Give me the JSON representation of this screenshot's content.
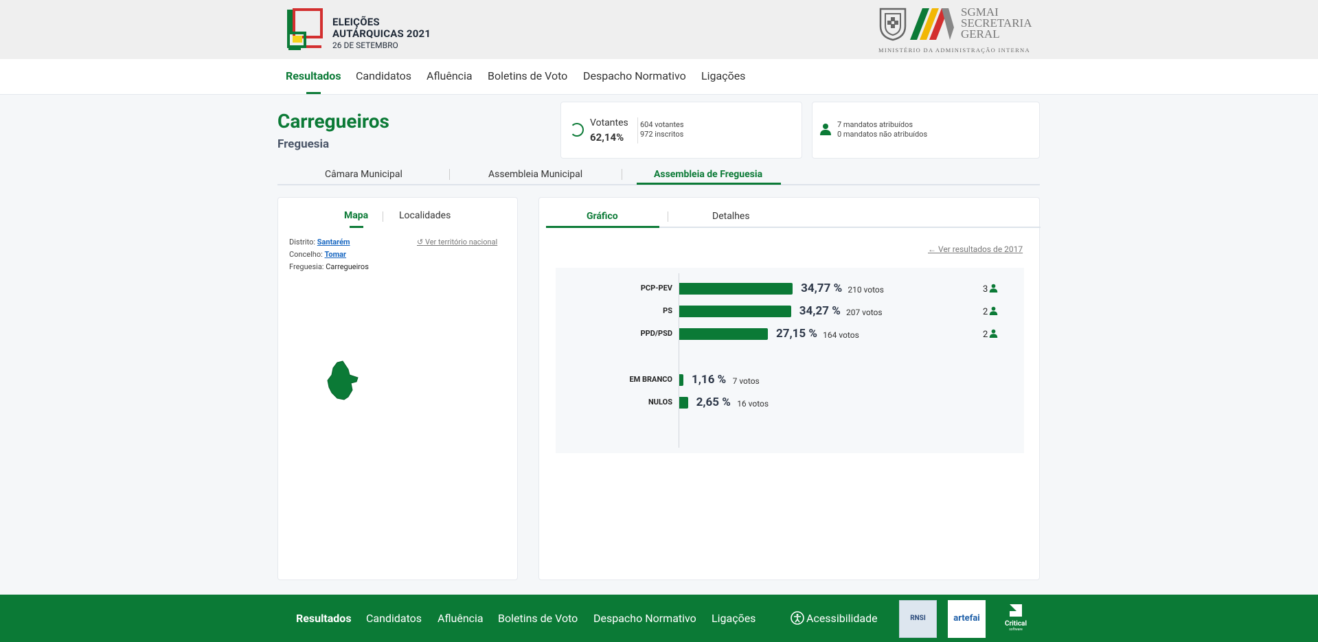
{
  "header": {
    "logo_line1": "ELEIÇÕES",
    "logo_line2": "AUTÁRQUICAS 2021",
    "logo_line3": "26 DE SETEMBRO",
    "sgmai_line1": "SGMAI",
    "sgmai_line2": "SECRETARIA",
    "sgmai_line3": "GERAL",
    "sgmai_sub": "MINISTÉRIO DA ADMINISTRAÇÃO INTERNA"
  },
  "nav": {
    "items": [
      "Resultados",
      "Candidatos",
      "Afluência",
      "Boletins de Voto",
      "Despacho Normativo",
      "Ligações"
    ]
  },
  "place": {
    "name": "Carregueiros",
    "type": "Freguesia"
  },
  "votantes": {
    "label": "Votantes",
    "pct": "62,14%",
    "voters": "604 votantes",
    "registered": "972 inscritos"
  },
  "mandatos": {
    "assigned": "7 mandatos atribuídos",
    "unassigned": "0 mandatos não atribuídos"
  },
  "tabs1": [
    "Câmara Municipal",
    "Assembleia Municipal",
    "Assembleia de Freguesia"
  ],
  "map_panel": {
    "tabs": [
      "Mapa",
      "Localidades"
    ],
    "ver_nacional": "Ver território nacional",
    "distrito_label": "Distrito:",
    "distrito": "Santarém",
    "concelho_label": "Concelho:",
    "concelho": "Tomar",
    "freguesia_label": "Freguesia:",
    "freguesia": "Carregueiros"
  },
  "chart_panel": {
    "tabs": [
      "Gráfico",
      "Detalhes"
    ],
    "ver_2017": "Ver resultados de 2017"
  },
  "chart_data": {
    "type": "bar",
    "orientation": "horizontal",
    "categories": [
      "PCP-PEV",
      "PS",
      "PPD/PSD",
      "EM BRANCO",
      "NULOS"
    ],
    "values": [
      34.77,
      34.27,
      27.15,
      1.16,
      2.65
    ],
    "pct_labels": [
      "34,77 %",
      "34,27 %",
      "27,15 %",
      "1,16 %",
      "2,65 %"
    ],
    "votes_labels": [
      "210 votos",
      "207 votos",
      "164 votos",
      "7 votos",
      "16 votos"
    ],
    "mandates": [
      "3",
      "2",
      "2",
      "",
      ""
    ],
    "bar_color": "#0b7a36"
  },
  "footer": {
    "items": [
      "Resultados",
      "Candidatos",
      "Afluência",
      "Boletins de Voto",
      "Despacho Normativo",
      "Ligações"
    ],
    "accessibility": "Acessibilidade",
    "rnsi": "RNSI",
    "artefai": "artefai",
    "critical": "Critical",
    "critical_sub": "software"
  },
  "colors": {
    "accent": "#0b7a36",
    "background": "#f5f7f9"
  }
}
